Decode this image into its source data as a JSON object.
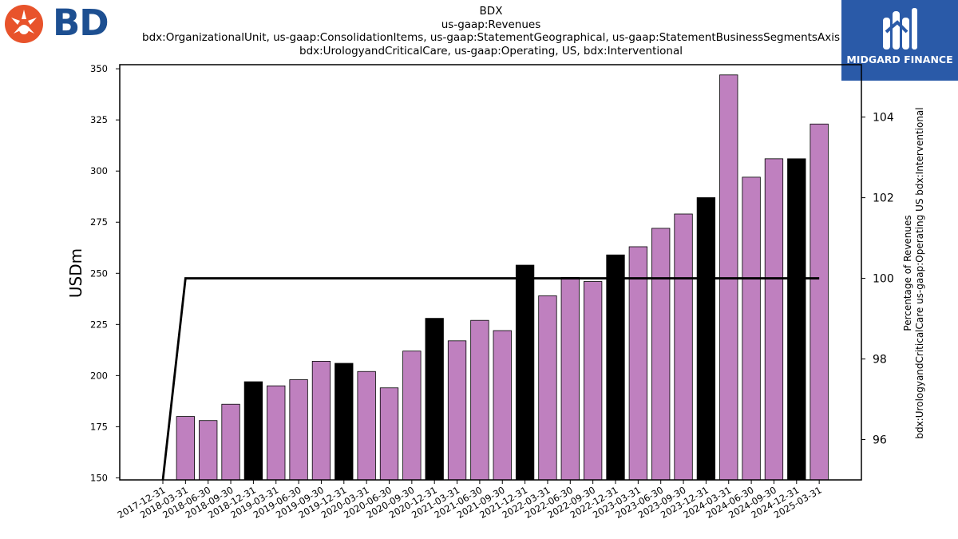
{
  "logos": {
    "left_brand": "BD",
    "right_brand": "MIDGARD FINANCE"
  },
  "chart_data": {
    "type": "bar",
    "title_lines": [
      "BDX",
      "us-gaap:Revenues",
      "bdx:OrganizationalUnit, us-gaap:ConsolidationItems, us-gaap:StatementGeographical, us-gaap:StatementBusinessSegmentsAxis",
      "bdx:UrologyandCriticalCare, us-gaap:Operating, US, bdx:Interventional"
    ],
    "ylabel": "USDm",
    "ylabel_right": [
      "Percentage of Revenues",
      "bdx:UrologyandCriticalCare us-gaap:Operating US bdx:Interventional"
    ],
    "ylim": [
      149,
      352
    ],
    "ylim_right": [
      95.0,
      105.3
    ],
    "yticks": [
      150,
      175,
      200,
      225,
      250,
      275,
      300,
      325,
      350
    ],
    "yticks_right": [
      96,
      98,
      100,
      102,
      104
    ],
    "categories": [
      "2017-12-31",
      "2018-03-31",
      "2018-06-30",
      "2018-09-30",
      "2018-12-31",
      "2019-03-31",
      "2019-06-30",
      "2019-09-30",
      "2019-12-31",
      "2020-03-31",
      "2020-06-30",
      "2020-09-30",
      "2020-12-31",
      "2021-03-31",
      "2021-06-30",
      "2021-09-30",
      "2021-12-31",
      "2022-03-31",
      "2022-06-30",
      "2022-09-30",
      "2022-12-31",
      "2023-03-31",
      "2023-06-30",
      "2023-09-30",
      "2023-12-31",
      "2024-03-31",
      "2024-06-30",
      "2024-09-30",
      "2024-12-31",
      "2025-03-31"
    ],
    "series": [
      {
        "values": [
          null,
          180,
          178,
          186,
          197,
          195,
          198,
          207,
          206,
          202,
          194,
          212,
          228,
          217,
          227,
          222,
          254,
          239,
          248,
          246,
          259,
          263,
          272,
          279,
          287,
          347,
          297,
          306,
          306,
          323
        ],
        "highlight": [
          false,
          false,
          false,
          false,
          true,
          false,
          false,
          false,
          true,
          false,
          false,
          false,
          true,
          false,
          false,
          false,
          true,
          false,
          false,
          false,
          true,
          false,
          false,
          false,
          true,
          false,
          false,
          false,
          true,
          false
        ]
      },
      {
        "axis": "right",
        "type": "line",
        "values": [
          95.0,
          100,
          100,
          100,
          100,
          100,
          100,
          100,
          100,
          100,
          100,
          100,
          100,
          100,
          100,
          100,
          100,
          100,
          100,
          100,
          100,
          100,
          100,
          100,
          100,
          100,
          100,
          100,
          100,
          100
        ]
      }
    ],
    "colors": {
      "bar": "#bf80bf",
      "highlight": "#000000",
      "line": "#000000"
    },
    "grid": false,
    "legend": "none"
  }
}
